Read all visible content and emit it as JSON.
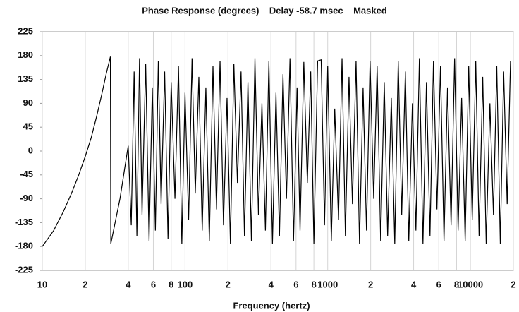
{
  "chart_data": {
    "type": "line",
    "title": "Phase Response (degrees)    Delay -58.7 msec    Masked",
    "xlabel": "Frequency (hertz)",
    "log_x": true,
    "grid": true,
    "color": "#000000",
    "xlim": [
      10,
      20000
    ],
    "ylim": [
      -225,
      225
    ],
    "yticks": [
      225,
      180,
      135,
      90,
      45,
      0,
      -45,
      -90,
      -135,
      -180,
      -225
    ],
    "xticks": [
      10,
      {
        "value": 20,
        "label": "2"
      },
      {
        "value": 40,
        "label": "4"
      },
      {
        "value": 60,
        "label": "6"
      },
      {
        "value": 80,
        "label": "8"
      },
      100,
      {
        "value": 200,
        "label": "2"
      },
      {
        "value": 400,
        "label": "4"
      },
      {
        "value": 600,
        "label": "6"
      },
      {
        "value": 800,
        "label": "8"
      },
      1000,
      {
        "value": 2000,
        "label": "2"
      },
      {
        "value": 4000,
        "label": "4"
      },
      {
        "value": 6000,
        "label": "6"
      },
      {
        "value": 8000,
        "label": "8"
      },
      10000,
      {
        "value": 20000,
        "label": "2"
      }
    ],
    "x": [
      10,
      12,
      14,
      16,
      18,
      20,
      22,
      24,
      26,
      28,
      30,
      30.2,
      35,
      40,
      42,
      44,
      46,
      48,
      50,
      53,
      56,
      59,
      62,
      65,
      68,
      72,
      76,
      80,
      85,
      90,
      95,
      100,
      106,
      112,
      118,
      125,
      132,
      140,
      148,
      157,
      166,
      176,
      186,
      197,
      208,
      220,
      233,
      247,
      261,
      276,
      292,
      309,
      327,
      346,
      366,
      387,
      410,
      434,
      459,
      486,
      514,
      544,
      576,
      610,
      640,
      680,
      720,
      760,
      800,
      850,
      900,
      950,
      1000,
      1060,
      1120,
      1190,
      1260,
      1330,
      1410,
      1490,
      1580,
      1670,
      1770,
      1870,
      1980,
      2100,
      2220,
      2350,
      2490,
      2630,
      2790,
      2950,
      3120,
      3300,
      3500,
      3700,
      3920,
      4150,
      4390,
      4650,
      4920,
      5210,
      5510,
      5830,
      6170,
      6530,
      6910,
      7320,
      7750,
      8200,
      8680,
      9190,
      9730,
      10300,
      10900,
      11500,
      12200,
      12900,
      13700,
      14500,
      15300,
      16200,
      17100,
      18100,
      19100
    ],
    "values": [
      -180,
      -150,
      -115,
      -80,
      -45,
      -10,
      25,
      65,
      105,
      145,
      178,
      -175,
      -90,
      10,
      -140,
      150,
      -160,
      175,
      -120,
      165,
      -170,
      120,
      -150,
      170,
      -100,
      150,
      -165,
      130,
      -90,
      160,
      -175,
      110,
      -130,
      175,
      -80,
      140,
      -150,
      120,
      -170,
      160,
      -110,
      170,
      -140,
      100,
      -175,
      165,
      -60,
      150,
      -160,
      130,
      -170,
      175,
      -120,
      90,
      -150,
      170,
      -175,
      110,
      -160,
      145,
      -90,
      175,
      -170,
      120,
      -150,
      168,
      -60,
      150,
      -175,
      170,
      172,
      -140,
      160,
      -170,
      80,
      -130,
      175,
      -160,
      140,
      -100,
      170,
      -175,
      120,
      -150,
      170,
      -90,
      160,
      -170,
      130,
      -160,
      100,
      -175,
      170,
      -120,
      150,
      -170,
      90,
      -150,
      175,
      -175,
      130,
      -160,
      170,
      -110,
      160,
      -170,
      120,
      -140,
      175,
      -150,
      100,
      -170,
      160,
      -130,
      170,
      -160,
      140,
      -175,
      90,
      -120,
      160,
      -175,
      150,
      -100,
      170
    ]
  }
}
